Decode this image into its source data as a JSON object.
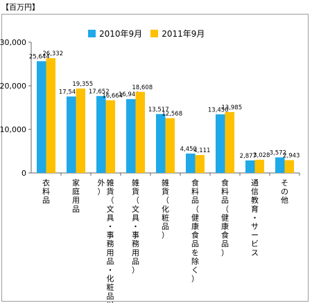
{
  "unit_label": "【百万円】",
  "colors": {
    "series_2010": "#1fa9e8",
    "series_2011": "#ffc000",
    "grid": "#a0a0a0",
    "axis": "#606060"
  },
  "chart_data": {
    "type": "bar",
    "title": "",
    "xlabel": "",
    "ylabel": "",
    "ylim": [
      0,
      30000
    ],
    "y_ticks": [
      "0",
      "10,000",
      "20,000",
      "30,000"
    ],
    "y_tick_values": [
      0,
      10000,
      20000,
      30000
    ],
    "grid": false,
    "legend_position": "top",
    "categories": [
      "衣料品",
      "家庭用品",
      "雑貨（文具・事務用品・化粧品以外）",
      "雑貨（文具・事務用品）",
      "雑貨（化粧品）",
      "食料品（健康食品を除く）",
      "食料品（健康食品）",
      "通信教育・サービス",
      "その他"
    ],
    "series": [
      {
        "name": "2010年9月",
        "values": [
          25644,
          17543,
          17652,
          16948,
          13517,
          4450,
          13450,
          2877,
          3572
        ],
        "labels": [
          "25,644",
          "17,543",
          "17,652",
          "16,948",
          "13,517",
          "4,450",
          "13,450",
          "2,877",
          "3,572"
        ]
      },
      {
        "name": "2011年9月",
        "values": [
          26332,
          19355,
          16664,
          18608,
          12568,
          4111,
          13985,
          3028,
          2943
        ],
        "labels": [
          "26,332",
          "19,355",
          "16,664",
          "18,608",
          "12,568",
          "4,111",
          "13,985",
          "3,028",
          "2,943"
        ]
      }
    ]
  }
}
